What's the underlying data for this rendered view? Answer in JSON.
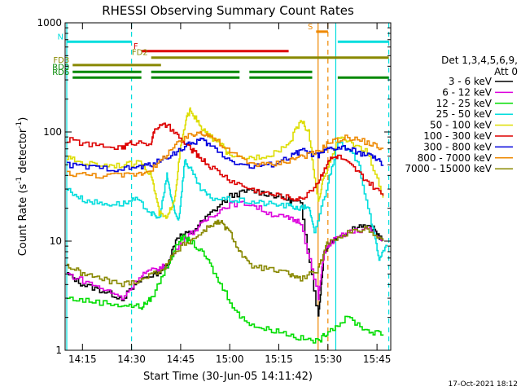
{
  "chart_data": {
    "type": "line",
    "title": "RHESSI Observing Summary Count Rates",
    "xlabel": "Start Time (30-Jun-05 14:11:42)",
    "ylabel_main": "Count Rate (s",
    "ylabel_sup1": "-1",
    "ylabel_mid": " detector",
    "ylabel_sup2": "-1",
    "ylabel_end": ")",
    "yscale": "log",
    "ylim": [
      1,
      1000
    ],
    "xlim": [
      14.1617,
      15.82
    ],
    "xticks": [
      {
        "v": 14.25,
        "label": "14:15"
      },
      {
        "v": 14.5,
        "label": "14:30"
      },
      {
        "v": 14.75,
        "label": "14:45"
      },
      {
        "v": 15.0,
        "label": "15:00"
      },
      {
        "v": 15.25,
        "label": "15:15"
      },
      {
        "v": 15.5,
        "label": "15:30"
      },
      {
        "v": 15.75,
        "label": "15:45"
      }
    ],
    "yticks": [
      {
        "v": 1,
        "label": "1"
      },
      {
        "v": 10,
        "label": "10"
      },
      {
        "v": 100,
        "label": "100"
      },
      {
        "v": 1000,
        "label": "1000"
      }
    ],
    "legend_header": [
      "Det 1,3,4,5,6,9,",
      "Att 0"
    ],
    "legend_position": "right",
    "timestamp": "17-Oct-2021 18:12",
    "series": [
      {
        "name": "3 - 6 keV",
        "color": "#000000",
        "points": [
          [
            14.17,
            5
          ],
          [
            14.25,
            4
          ],
          [
            14.35,
            3.5
          ],
          [
            14.45,
            3
          ],
          [
            14.55,
            4.5
          ],
          [
            14.62,
            5
          ],
          [
            14.68,
            6
          ],
          [
            14.73,
            11
          ],
          [
            14.8,
            12
          ],
          [
            14.9,
            18
          ],
          [
            15.0,
            26
          ],
          [
            15.1,
            29
          ],
          [
            15.2,
            27
          ],
          [
            15.3,
            24
          ],
          [
            15.36,
            22
          ],
          [
            15.45,
            2
          ],
          [
            15.48,
            8
          ],
          [
            15.52,
            10
          ],
          [
            15.55,
            11
          ],
          [
            15.65,
            14
          ],
          [
            15.73,
            13
          ],
          [
            15.78,
            10
          ]
        ]
      },
      {
        "name": "6 - 12 keV",
        "color": "#dd00dd",
        "points": [
          [
            14.17,
            5
          ],
          [
            14.3,
            4
          ],
          [
            14.45,
            3
          ],
          [
            14.55,
            5
          ],
          [
            14.62,
            5.5
          ],
          [
            14.68,
            6
          ],
          [
            14.75,
            10
          ],
          [
            14.83,
            13
          ],
          [
            14.9,
            17
          ],
          [
            15.0,
            22
          ],
          [
            15.1,
            22
          ],
          [
            15.2,
            18
          ],
          [
            15.3,
            16
          ],
          [
            15.36,
            15
          ],
          [
            15.45,
            3
          ],
          [
            15.48,
            8
          ],
          [
            15.52,
            10
          ],
          [
            15.6,
            12
          ],
          [
            15.7,
            13
          ],
          [
            15.78,
            10
          ]
        ]
      },
      {
        "name": "12 - 25 keV",
        "color": "#00dd00",
        "points": [
          [
            14.17,
            3
          ],
          [
            14.3,
            2.8
          ],
          [
            14.45,
            2.6
          ],
          [
            14.55,
            2.5
          ],
          [
            14.6,
            3
          ],
          [
            14.68,
            6
          ],
          [
            14.75,
            11
          ],
          [
            14.8,
            10
          ],
          [
            14.88,
            7
          ],
          [
            14.95,
            4
          ],
          [
            15.05,
            2
          ],
          [
            15.15,
            1.6
          ],
          [
            15.25,
            1.5
          ],
          [
            15.35,
            1.3
          ],
          [
            15.45,
            1.2
          ],
          [
            15.5,
            1.5
          ],
          [
            15.6,
            2
          ],
          [
            15.7,
            1.5
          ],
          [
            15.78,
            1.4
          ]
        ]
      },
      {
        "name": "25 - 50 keV",
        "color": "#00dddd",
        "points": [
          [
            14.17,
            30
          ],
          [
            14.25,
            24
          ],
          [
            14.35,
            22
          ],
          [
            14.45,
            22
          ],
          [
            14.52,
            24
          ],
          [
            14.6,
            18
          ],
          [
            14.64,
            16
          ],
          [
            14.68,
            40
          ],
          [
            14.7,
            26
          ],
          [
            14.72,
            18
          ],
          [
            14.74,
            16
          ],
          [
            14.77,
            55
          ],
          [
            14.8,
            45
          ],
          [
            14.85,
            30
          ],
          [
            14.9,
            25
          ],
          [
            15.0,
            24
          ],
          [
            15.1,
            23
          ],
          [
            15.2,
            22
          ],
          [
            15.3,
            21
          ],
          [
            15.36,
            20
          ],
          [
            15.4,
            21
          ],
          [
            15.43,
            12
          ],
          [
            15.5,
            35
          ],
          [
            15.55,
            80
          ],
          [
            15.65,
            55
          ],
          [
            15.72,
            15
          ],
          [
            15.76,
            7
          ],
          [
            15.8,
            9
          ]
        ]
      },
      {
        "name": "50 - 100 keV",
        "color": "#dddd00",
        "points": [
          [
            14.17,
            58
          ],
          [
            14.25,
            52
          ],
          [
            14.35,
            50
          ],
          [
            14.45,
            50
          ],
          [
            14.55,
            52
          ],
          [
            14.6,
            40
          ],
          [
            14.64,
            18
          ],
          [
            14.68,
            16
          ],
          [
            14.72,
            26
          ],
          [
            14.75,
            75
          ],
          [
            14.78,
            135
          ],
          [
            14.8,
            160
          ],
          [
            14.85,
            110
          ],
          [
            14.9,
            90
          ],
          [
            14.95,
            80
          ],
          [
            15.0,
            58
          ],
          [
            15.1,
            58
          ],
          [
            15.2,
            62
          ],
          [
            15.3,
            78
          ],
          [
            15.36,
            130
          ],
          [
            15.4,
            100
          ],
          [
            15.45,
            22
          ],
          [
            15.48,
            40
          ],
          [
            15.55,
            88
          ],
          [
            15.62,
            80
          ],
          [
            15.7,
            65
          ],
          [
            15.78,
            25
          ]
        ]
      },
      {
        "name": "100 - 300 keV",
        "color": "#dd0000",
        "points": [
          [
            14.17,
            85
          ],
          [
            14.3,
            75
          ],
          [
            14.45,
            72
          ],
          [
            14.5,
            80
          ],
          [
            14.6,
            80
          ],
          [
            14.62,
            110
          ],
          [
            14.68,
            115
          ],
          [
            14.75,
            85
          ],
          [
            14.8,
            70
          ],
          [
            14.85,
            58
          ],
          [
            14.9,
            48
          ],
          [
            15.0,
            36
          ],
          [
            15.1,
            30
          ],
          [
            15.2,
            27
          ],
          [
            15.3,
            25
          ],
          [
            15.36,
            24
          ],
          [
            15.45,
            35
          ],
          [
            15.5,
            55
          ],
          [
            15.55,
            60
          ],
          [
            15.62,
            48
          ],
          [
            15.7,
            35
          ],
          [
            15.78,
            26
          ]
        ]
      },
      {
        "name": "300 - 800 keV",
        "color": "#0000dd",
        "points": [
          [
            14.17,
            50
          ],
          [
            14.3,
            47
          ],
          [
            14.45,
            46
          ],
          [
            14.55,
            48
          ],
          [
            14.62,
            52
          ],
          [
            14.7,
            62
          ],
          [
            14.78,
            75
          ],
          [
            14.85,
            86
          ],
          [
            14.9,
            75
          ],
          [
            15.0,
            55
          ],
          [
            15.1,
            48
          ],
          [
            15.2,
            50
          ],
          [
            15.3,
            58
          ],
          [
            15.36,
            68
          ],
          [
            15.45,
            60
          ],
          [
            15.5,
            70
          ],
          [
            15.58,
            72
          ],
          [
            15.65,
            65
          ],
          [
            15.72,
            60
          ],
          [
            15.78,
            50
          ]
        ]
      },
      {
        "name": "800 - 7000 keV",
        "color": "#ee8800",
        "points": [
          [
            14.17,
            42
          ],
          [
            14.3,
            40
          ],
          [
            14.45,
            40
          ],
          [
            14.55,
            42
          ],
          [
            14.62,
            48
          ],
          [
            14.7,
            70
          ],
          [
            14.78,
            90
          ],
          [
            14.85,
            100
          ],
          [
            14.9,
            92
          ],
          [
            15.0,
            65
          ],
          [
            15.1,
            52
          ],
          [
            15.2,
            50
          ],
          [
            15.3,
            55
          ],
          [
            15.36,
            60
          ],
          [
            15.45,
            65
          ],
          [
            15.5,
            80
          ],
          [
            15.6,
            90
          ],
          [
            15.7,
            80
          ],
          [
            15.78,
            70
          ]
        ]
      },
      {
        "name": "7000 - 15000 keV",
        "color": "#888800",
        "points": [
          [
            14.17,
            6
          ],
          [
            14.25,
            5
          ],
          [
            14.35,
            4.5
          ],
          [
            14.45,
            4
          ],
          [
            14.55,
            4.5
          ],
          [
            14.65,
            5.5
          ],
          [
            14.75,
            9
          ],
          [
            14.83,
            11
          ],
          [
            14.9,
            14
          ],
          [
            14.95,
            15
          ],
          [
            15.0,
            12
          ],
          [
            15.05,
            8
          ],
          [
            15.1,
            6
          ],
          [
            15.2,
            5.5
          ],
          [
            15.3,
            5
          ],
          [
            15.36,
            4.5
          ],
          [
            15.45,
            5.5
          ],
          [
            15.5,
            10
          ],
          [
            15.6,
            12
          ],
          [
            15.7,
            13
          ],
          [
            15.78,
            10
          ]
        ]
      }
    ],
    "segments": [
      {
        "label": "N",
        "color": "#00dddd",
        "y": 670,
        "ranges": [
          [
            14.17,
            14.5
          ],
          [
            15.55,
            15.81
          ]
        ]
      },
      {
        "label": "F",
        "color": "#dd0000",
        "y": 550,
        "ranges": [
          [
            14.55,
            15.3
          ]
        ]
      },
      {
        "label": "FD2",
        "color": "#888800",
        "y": 480,
        "ranges": [
          [
            14.6,
            15.81
          ]
        ]
      },
      {
        "label": "FD3",
        "color": "#888800",
        "y": 410,
        "ranges": [
          [
            14.2,
            14.65
          ]
        ]
      },
      {
        "label": "RD0",
        "color": "#008800",
        "y": 355,
        "ranges": [
          [
            14.2,
            14.55
          ],
          [
            14.6,
            15.05
          ],
          [
            15.1,
            15.42
          ]
        ]
      },
      {
        "label": "RD6",
        "color": "#008800",
        "y": 315,
        "ranges": [
          [
            14.2,
            14.55
          ],
          [
            14.6,
            15.05
          ],
          [
            15.1,
            15.42
          ],
          [
            15.55,
            15.81
          ]
        ]
      },
      {
        "label": "S",
        "color": "#ee8800",
        "y": 830,
        "ranges": [
          [
            15.44,
            15.5
          ]
        ]
      }
    ],
    "vlines": [
      {
        "x": 14.17,
        "color": "#00dddd",
        "style": "solid"
      },
      {
        "x": 14.5,
        "color": "#00dddd",
        "style": "dashed"
      },
      {
        "x": 15.45,
        "color": "#ee8800",
        "style": "solid"
      },
      {
        "x": 15.5,
        "color": "#ee8800",
        "style": "dashed"
      },
      {
        "x": 15.54,
        "color": "#00dddd",
        "style": "solid"
      },
      {
        "x": 15.81,
        "color": "#00dddd",
        "style": "dashed"
      }
    ]
  }
}
